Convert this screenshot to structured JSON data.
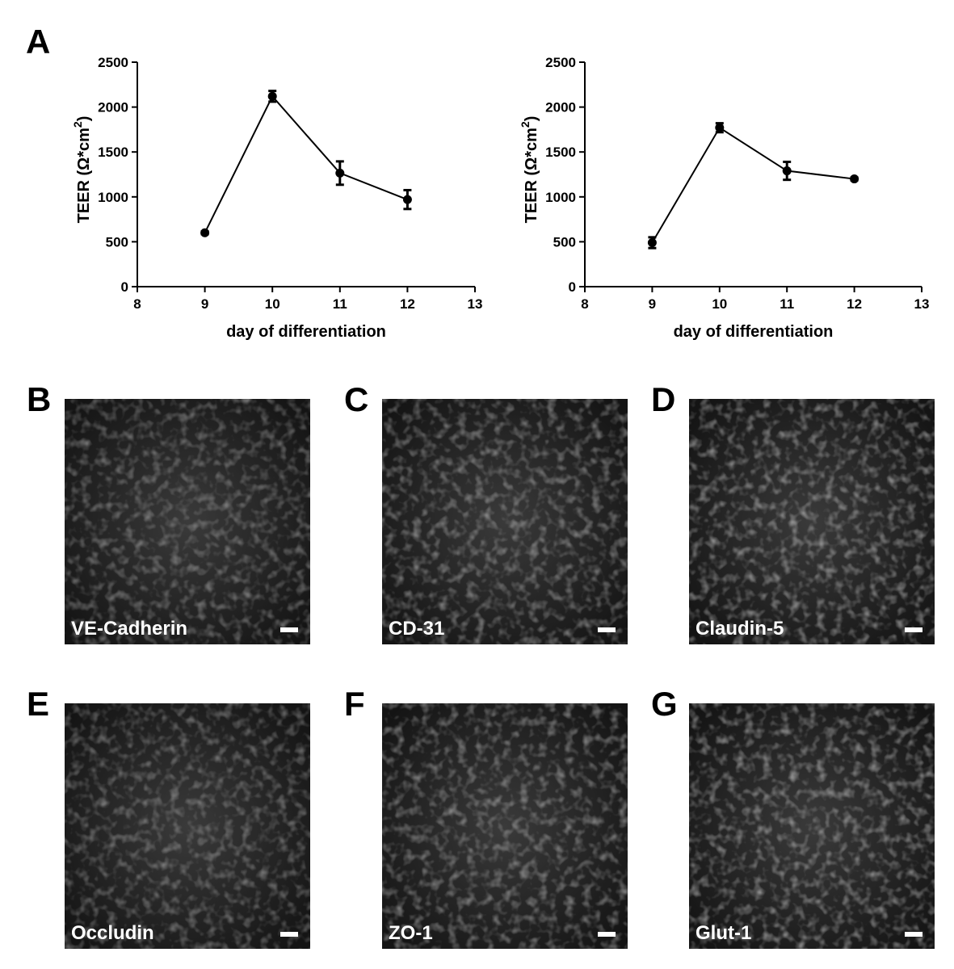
{
  "panel_a_label": "A",
  "chart_data": [
    {
      "type": "line",
      "ylabel": [
        "TEER (Ω*cm",
        "2",
        ")"
      ],
      "xlabel": "day of differentiation",
      "x": [
        9,
        10,
        11,
        12
      ],
      "values": [
        600,
        2120,
        1265,
        970
      ],
      "errors": [
        15,
        60,
        130,
        105
      ],
      "color": "#000000",
      "xlim": [
        8,
        13
      ],
      "xticks": [
        8,
        9,
        10,
        11,
        12,
        13
      ],
      "ylim": [
        0,
        2500
      ],
      "yticks": [
        0,
        500,
        1000,
        1500,
        2000,
        2500
      ]
    },
    {
      "type": "line",
      "ylabel": [
        "TEER (Ω*cm",
        "2",
        ")"
      ],
      "xlabel": "day of differentiation",
      "x": [
        9,
        10,
        11,
        12
      ],
      "values": [
        490,
        1770,
        1290,
        1200
      ],
      "errors": [
        60,
        50,
        100,
        15
      ],
      "color": "#000000",
      "xlim": [
        8,
        13
      ],
      "xticks": [
        8,
        9,
        10,
        11,
        12,
        13
      ],
      "ylim": [
        0,
        2500
      ],
      "yticks": [
        0,
        500,
        1000,
        1500,
        2000,
        2500
      ]
    }
  ],
  "images": [
    {
      "letter": "B",
      "label": "VE-Cadherin"
    },
    {
      "letter": "C",
      "label": "CD-31"
    },
    {
      "letter": "D",
      "label": "Claudin-5"
    },
    {
      "letter": "E",
      "label": "Occludin"
    },
    {
      "letter": "F",
      "label": "ZO-1"
    },
    {
      "letter": "G",
      "label": "Glut-1"
    }
  ]
}
